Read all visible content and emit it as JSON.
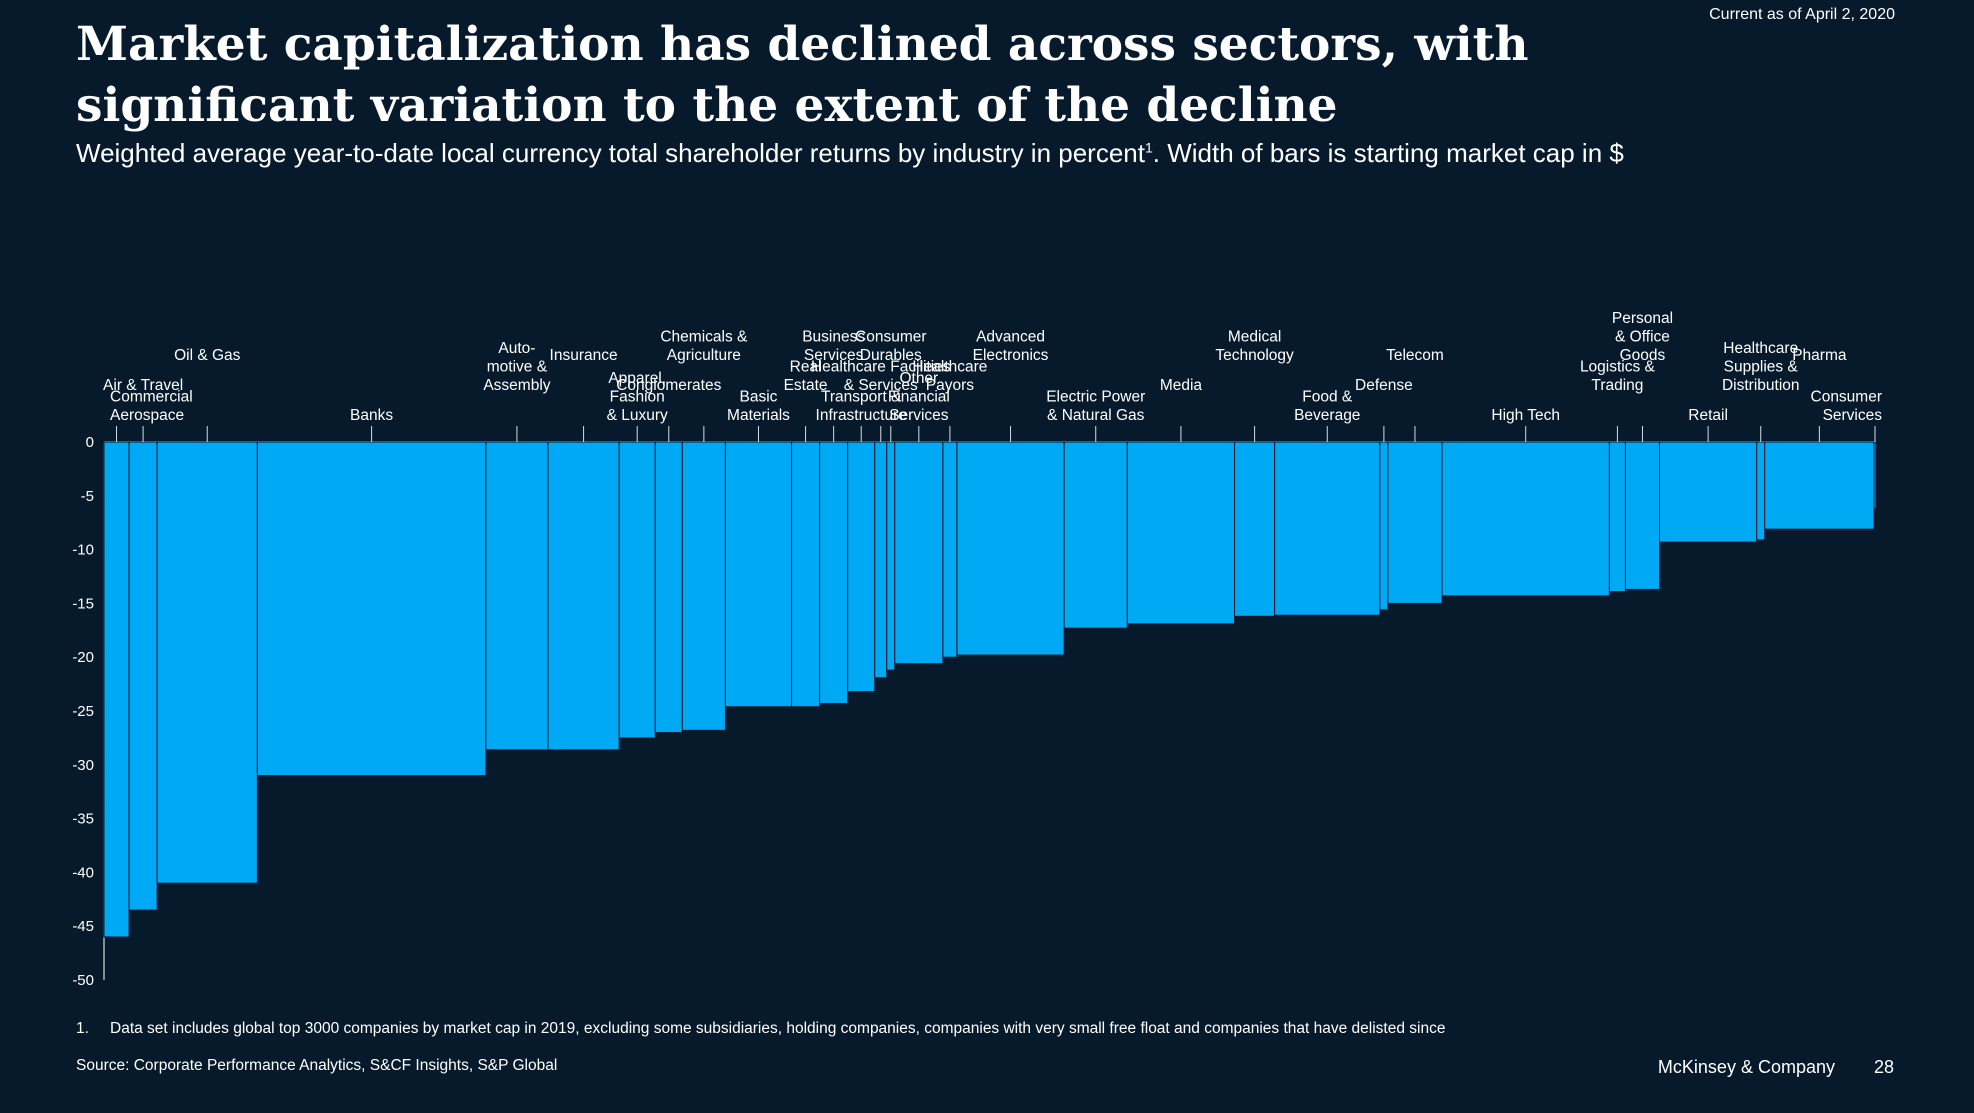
{
  "as_of": "Current as of April 2, 2020",
  "title": "Market capitalization has declined across sectors, with significant variation to the extent of the decline",
  "subtitle": "Weighted average year-to-date local currency total shareholder returns by industry in percent",
  "subtitle_sup": "1",
  "subtitle_tail": ". Width of bars is starting market cap in $",
  "footnote_number": "1.",
  "footnote": "Data set includes global top 3000 companies by market cap in 2019, excluding some subsidiaries, holding companies, companies with very small free float and companies that have delisted since",
  "source": "Source: Corporate Performance Analytics, S&CF Insights, S&P Global",
  "brand": "McKinsey & Company",
  "page_number": "28",
  "colors": {
    "background": "#061a2c",
    "bar": "#00a9f4",
    "text": "#ffffff",
    "leader": "#d6dde4"
  },
  "chart_data": {
    "type": "bar",
    "variable_width": true,
    "ylim": [
      -50,
      0
    ],
    "yticks": [
      0,
      -5,
      -10,
      -15,
      -20,
      -25,
      -30,
      -35,
      -40,
      -45,
      -50
    ],
    "series": [
      {
        "values": [
          -46,
          -43.5,
          -41,
          -31,
          -28.6,
          -28.6,
          -27.5,
          -27,
          -26.8,
          -24.6,
          -24.6,
          -24.3,
          -23.2,
          -21.9,
          -21.2,
          -20.6,
          -20,
          -19.8,
          -17.3,
          -16.9,
          -16.2,
          -16.1,
          -15.6,
          -15,
          -14.3,
          -13.9,
          -13.7,
          -9.3,
          -9.1,
          -8.1,
          -6.2
        ],
        "widths": [
          0.25,
          0.28,
          1.0,
          2.28,
          0.62,
          0.71,
          0.36,
          0.27,
          0.43,
          0.66,
          0.28,
          0.28,
          0.27,
          0.12,
          0.08,
          0.48,
          0.14,
          1.07,
          0.63,
          1.07,
          0.4,
          1.05,
          0.08,
          0.54,
          1.67,
          0.16,
          0.34,
          0.97,
          0.08,
          1.09,
          0.02
        ]
      }
    ],
    "labels": [
      [
        "Commercial",
        "Aerospace"
      ],
      [
        "Air & Travel"
      ],
      [
        "Oil & Gas"
      ],
      [
        "Banks"
      ],
      [
        "Auto-",
        "motive &",
        "Assembly"
      ],
      [
        "Insurance"
      ],
      [
        "Apparel,",
        "Fashion",
        "& Luxury"
      ],
      [
        "Conglomerates"
      ],
      [
        "Chemicals &",
        "Agriculture"
      ],
      [
        "Basic",
        "Materials"
      ],
      [
        "Real",
        "Estate"
      ],
      [
        "Business",
        "Services"
      ],
      [
        "Transport &",
        "Infrastructure"
      ],
      [
        "Healthcare Facilities",
        "& Services"
      ],
      [
        "Consumer",
        "Durables"
      ],
      [
        "Other",
        "Financial",
        "Services"
      ],
      [
        "Healthcare",
        "Payors"
      ],
      [
        "Advanced",
        "Electronics"
      ],
      [
        "Electric Power",
        "& Natural Gas"
      ],
      [
        "Media"
      ],
      [
        "Medical",
        "Technology"
      ],
      [
        "Food &",
        "Beverage"
      ],
      [
        "Defense"
      ],
      [
        "Telecom"
      ],
      [
        "High Tech"
      ],
      [
        "Logistics &",
        "Trading"
      ],
      [
        "Personal",
        "& Office",
        "Goods"
      ],
      [
        "Retail"
      ],
      [
        "Healthcare",
        "Supplies &",
        "Distribution"
      ],
      [
        "Pharma"
      ],
      [
        "Consumer",
        "Services"
      ]
    ]
  }
}
